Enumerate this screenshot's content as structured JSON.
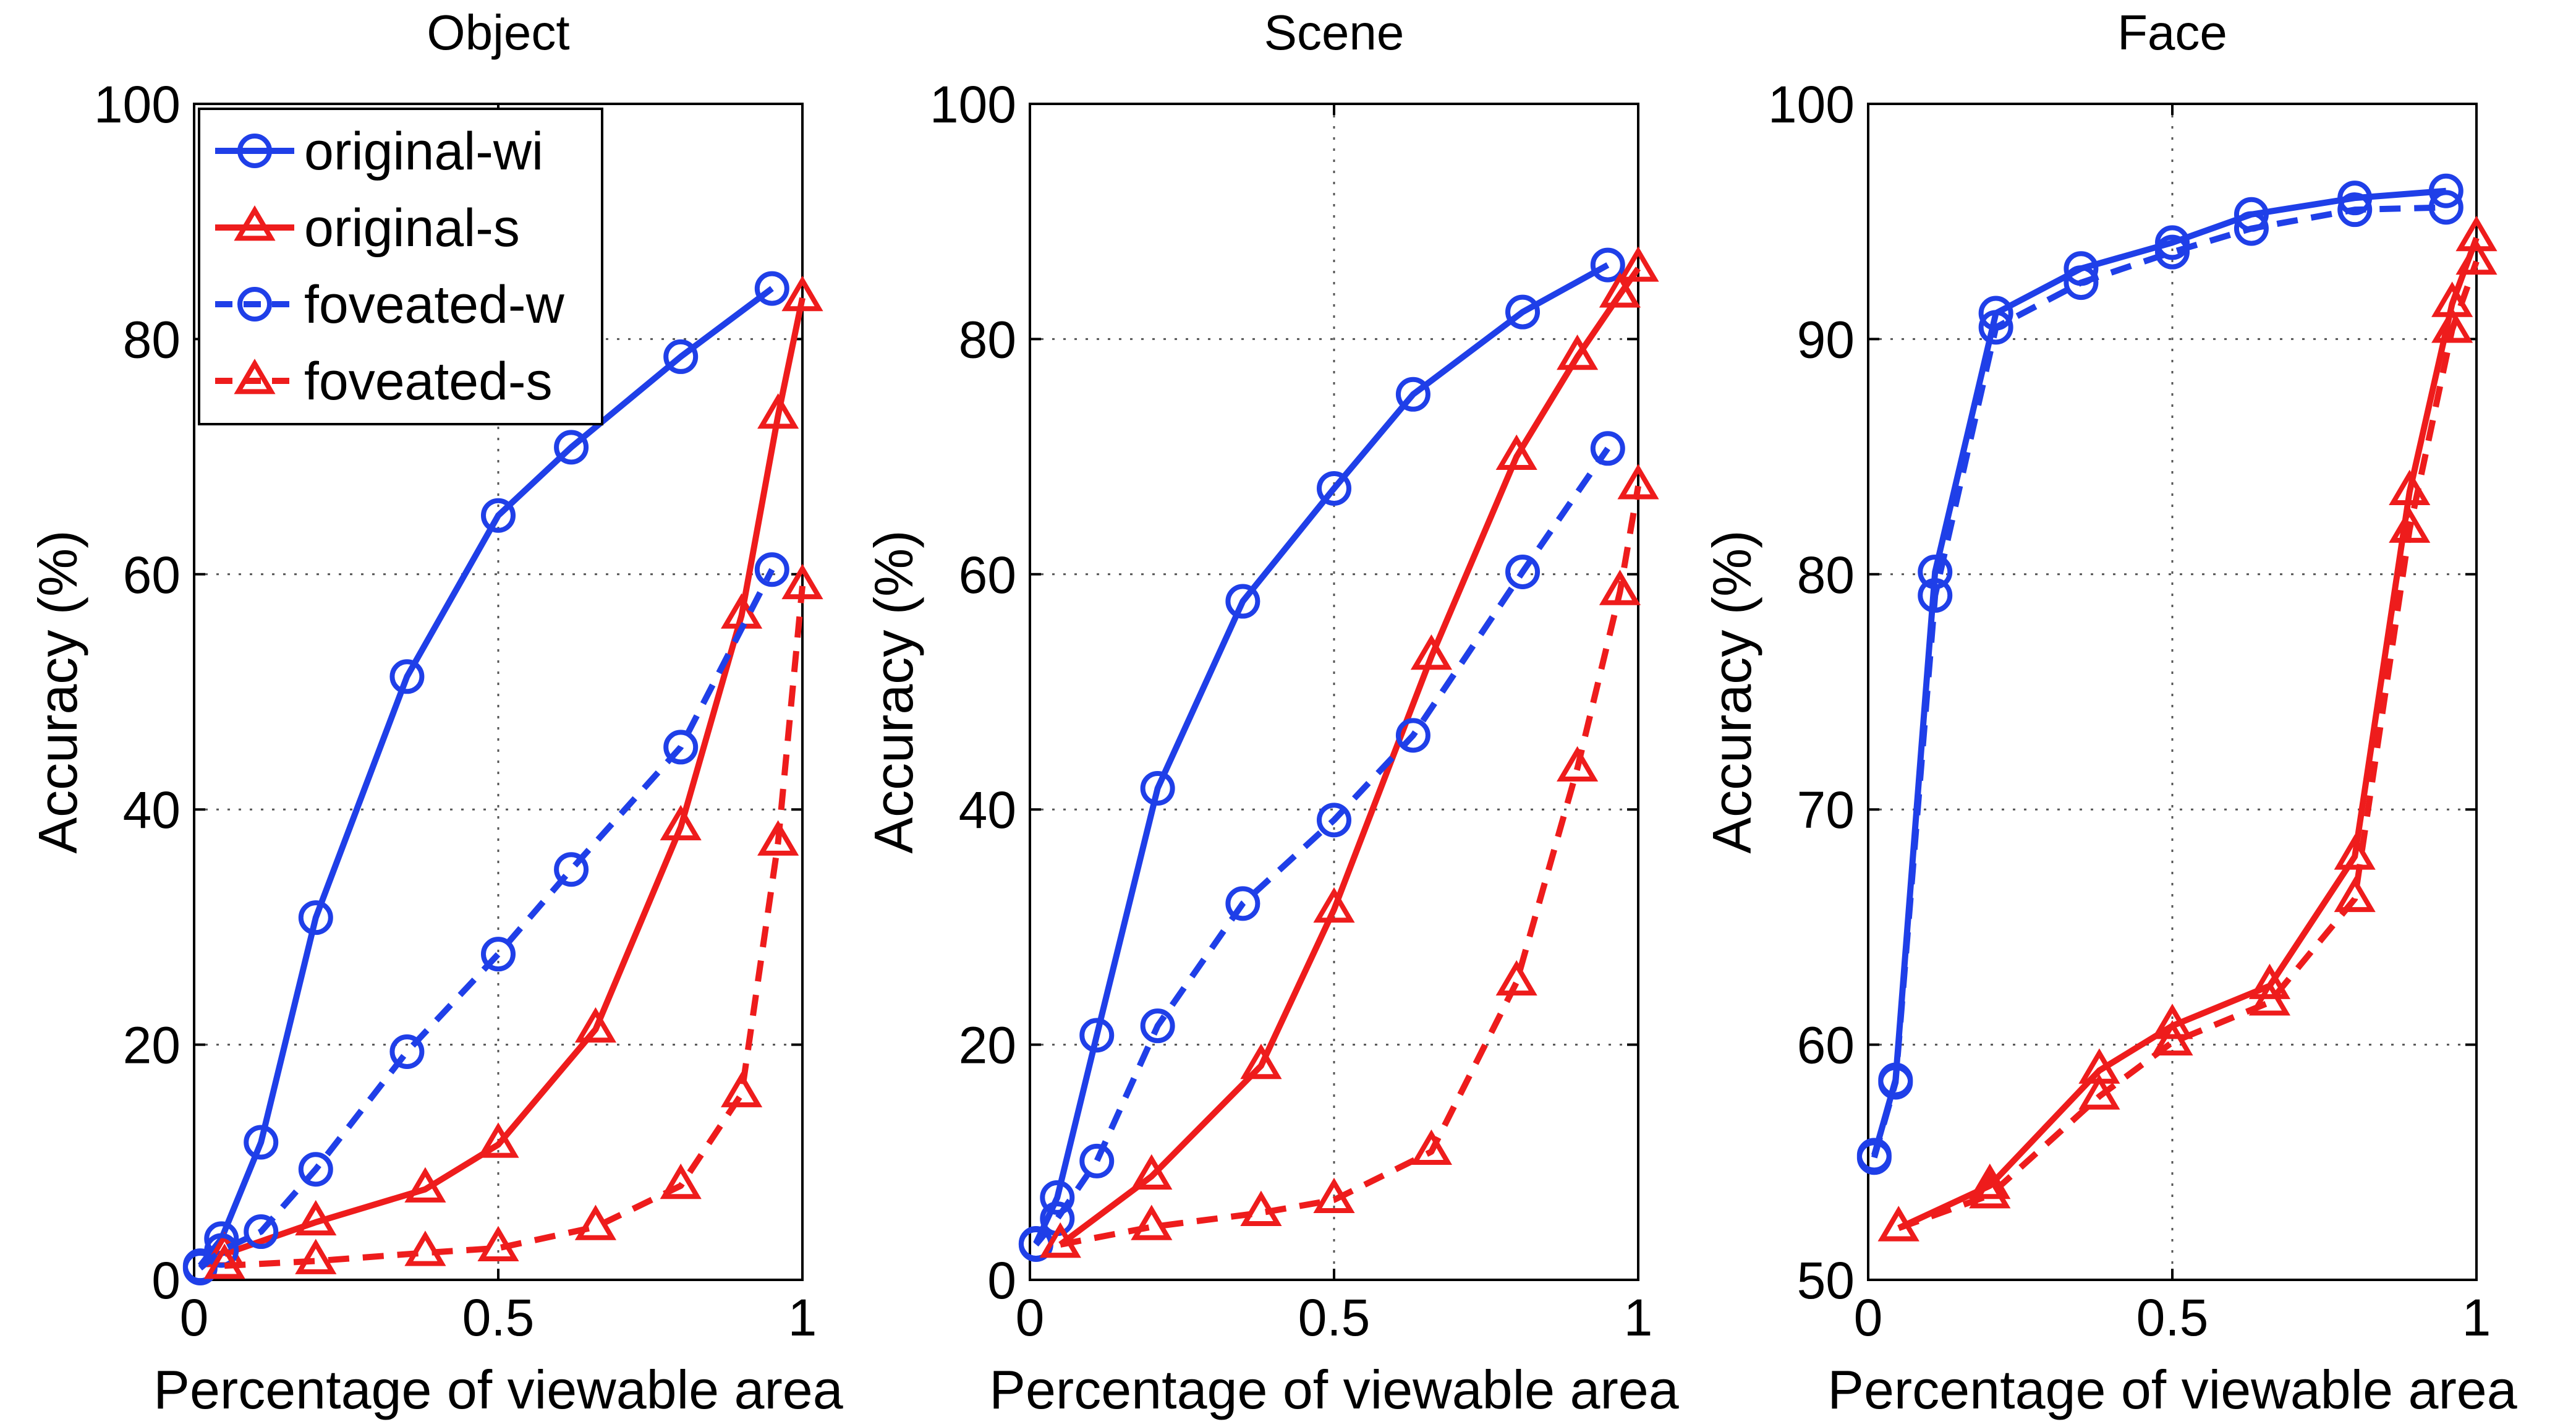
{
  "chart_data": [
    {
      "type": "line",
      "title": "Object",
      "xlabel": "Percentage of viewable area",
      "ylabel": "Accuracy (%)",
      "xlim": [
        0,
        1
      ],
      "ylim": [
        0,
        100
      ],
      "xticks": [
        0,
        0.5,
        1
      ],
      "xtick_labels": [
        "0",
        "0.5",
        "1"
      ],
      "yticks": [
        0,
        20,
        40,
        60,
        80,
        100
      ],
      "ytick_labels": [
        "0",
        "20",
        "40",
        "60",
        "80",
        "100"
      ],
      "grid": true,
      "legend_position": "top-left",
      "series": [
        {
          "name": "original-wi",
          "color": "#1f3fe8",
          "dash": "solid",
          "marker": "circle",
          "x": [
            0.01,
            0.045,
            0.11,
            0.2,
            0.35,
            0.5,
            0.62,
            0.8,
            0.95
          ],
          "y": [
            1.2,
            3.5,
            11.7,
            30.8,
            51.3,
            65.0,
            70.8,
            78.5,
            84.3
          ]
        },
        {
          "name": "original-s",
          "color": "#ee1c1c",
          "dash": "solid",
          "marker": "triangle",
          "x": [
            0.05,
            0.2,
            0.38,
            0.5,
            0.66,
            0.8,
            0.9,
            0.96,
            1.0
          ],
          "y": [
            2.2,
            4.9,
            7.7,
            11.5,
            21.3,
            38.5,
            56.5,
            73.5,
            83.5
          ]
        },
        {
          "name": "foveated-w",
          "color": "#1f3fe8",
          "dash": "dashed",
          "marker": "circle",
          "x": [
            0.01,
            0.045,
            0.11,
            0.2,
            0.35,
            0.5,
            0.62,
            0.8,
            0.95
          ],
          "y": [
            1.0,
            2.5,
            4.1,
            9.4,
            19.4,
            27.7,
            34.9,
            45.3,
            60.4
          ]
        },
        {
          "name": "foveated-s",
          "color": "#ee1c1c",
          "dash": "dashed",
          "marker": "triangle",
          "x": [
            0.05,
            0.2,
            0.38,
            0.5,
            0.66,
            0.8,
            0.9,
            0.96,
            1.0
          ],
          "y": [
            1.2,
            1.6,
            2.3,
            2.7,
            4.5,
            8.0,
            15.8,
            37.2,
            59.0
          ]
        }
      ]
    },
    {
      "type": "line",
      "title": "Scene",
      "xlabel": "Percentage of viewable area",
      "ylabel": "Accuracy (%)",
      "xlim": [
        0,
        1
      ],
      "ylim": [
        0,
        100
      ],
      "xticks": [
        0,
        0.5,
        1
      ],
      "xtick_labels": [
        "0",
        "0.5",
        "1"
      ],
      "yticks": [
        0,
        20,
        40,
        60,
        80,
        100
      ],
      "ytick_labels": [
        "0",
        "20",
        "40",
        "60",
        "80",
        "100"
      ],
      "grid": true,
      "series": [
        {
          "name": "original-wi",
          "color": "#1f3fe8",
          "dash": "solid",
          "marker": "circle",
          "x": [
            0.01,
            0.045,
            0.11,
            0.21,
            0.35,
            0.5,
            0.63,
            0.81,
            0.95
          ],
          "y": [
            3.1,
            7.0,
            20.8,
            41.8,
            57.7,
            67.3,
            75.3,
            82.3,
            86.3
          ]
        },
        {
          "name": "original-s",
          "color": "#ee1c1c",
          "dash": "solid",
          "marker": "triangle",
          "x": [
            0.05,
            0.2,
            0.38,
            0.5,
            0.66,
            0.8,
            0.9,
            0.97,
            1.0
          ],
          "y": [
            3.0,
            8.8,
            18.2,
            31.5,
            53.0,
            70.0,
            78.5,
            83.8,
            86.0
          ]
        },
        {
          "name": "foveated-w",
          "color": "#1f3fe8",
          "dash": "dashed",
          "marker": "circle",
          "x": [
            0.01,
            0.045,
            0.11,
            0.21,
            0.35,
            0.5,
            0.63,
            0.81,
            0.95
          ],
          "y": [
            3.0,
            5.2,
            10.1,
            21.6,
            32.0,
            39.1,
            46.3,
            60.2,
            70.7
          ]
        },
        {
          "name": "foveated-s",
          "color": "#ee1c1c",
          "dash": "dashed",
          "marker": "triangle",
          "x": [
            0.05,
            0.2,
            0.38,
            0.5,
            0.66,
            0.8,
            0.9,
            0.97,
            1.0
          ],
          "y": [
            3.0,
            4.5,
            5.7,
            6.8,
            10.9,
            25.3,
            43.5,
            58.5,
            67.5
          ]
        }
      ]
    },
    {
      "type": "line",
      "title": "Face",
      "xlabel": "Percentage of viewable area",
      "ylabel": "Accuracy (%)",
      "xlim": [
        0,
        1
      ],
      "ylim": [
        50,
        100
      ],
      "xticks": [
        0,
        0.5,
        1
      ],
      "xtick_labels": [
        "0",
        "0.5",
        "1"
      ],
      "yticks": [
        50,
        60,
        70,
        80,
        90,
        100
      ],
      "ytick_labels": [
        "50",
        "60",
        "70",
        "80",
        "90",
        "100"
      ],
      "grid": true,
      "series": [
        {
          "name": "original-wi",
          "color": "#1f3fe8",
          "dash": "solid",
          "marker": "circle",
          "x": [
            0.01,
            0.045,
            0.11,
            0.21,
            0.35,
            0.5,
            0.63,
            0.8,
            0.95
          ],
          "y": [
            55.3,
            58.5,
            80.1,
            91.1,
            93.0,
            94.1,
            95.3,
            96.0,
            96.3
          ]
        },
        {
          "name": "original-s",
          "color": "#ee1c1c",
          "dash": "solid",
          "marker": "triangle",
          "x": [
            0.05,
            0.2,
            0.38,
            0.5,
            0.66,
            0.8,
            0.89,
            0.96,
            1.0
          ],
          "y": [
            52.2,
            54.0,
            58.9,
            60.8,
            62.5,
            68.0,
            83.5,
            91.5,
            94.3
          ]
        },
        {
          "name": "foveated-w",
          "color": "#1f3fe8",
          "dash": "dashed",
          "marker": "circle",
          "x": [
            0.01,
            0.045,
            0.11,
            0.21,
            0.35,
            0.5,
            0.63,
            0.8,
            0.95
          ],
          "y": [
            55.2,
            58.4,
            79.1,
            90.5,
            92.4,
            93.7,
            94.7,
            95.5,
            95.6
          ]
        },
        {
          "name": "foveated-s",
          "color": "#ee1c1c",
          "dash": "dashed",
          "marker": "triangle",
          "x": [
            0.05,
            0.2,
            0.38,
            0.5,
            0.66,
            0.8,
            0.89,
            0.96,
            1.0
          ],
          "y": [
            52.2,
            53.6,
            57.8,
            60.1,
            61.8,
            66.2,
            81.9,
            90.4,
            93.3
          ]
        }
      ]
    }
  ]
}
